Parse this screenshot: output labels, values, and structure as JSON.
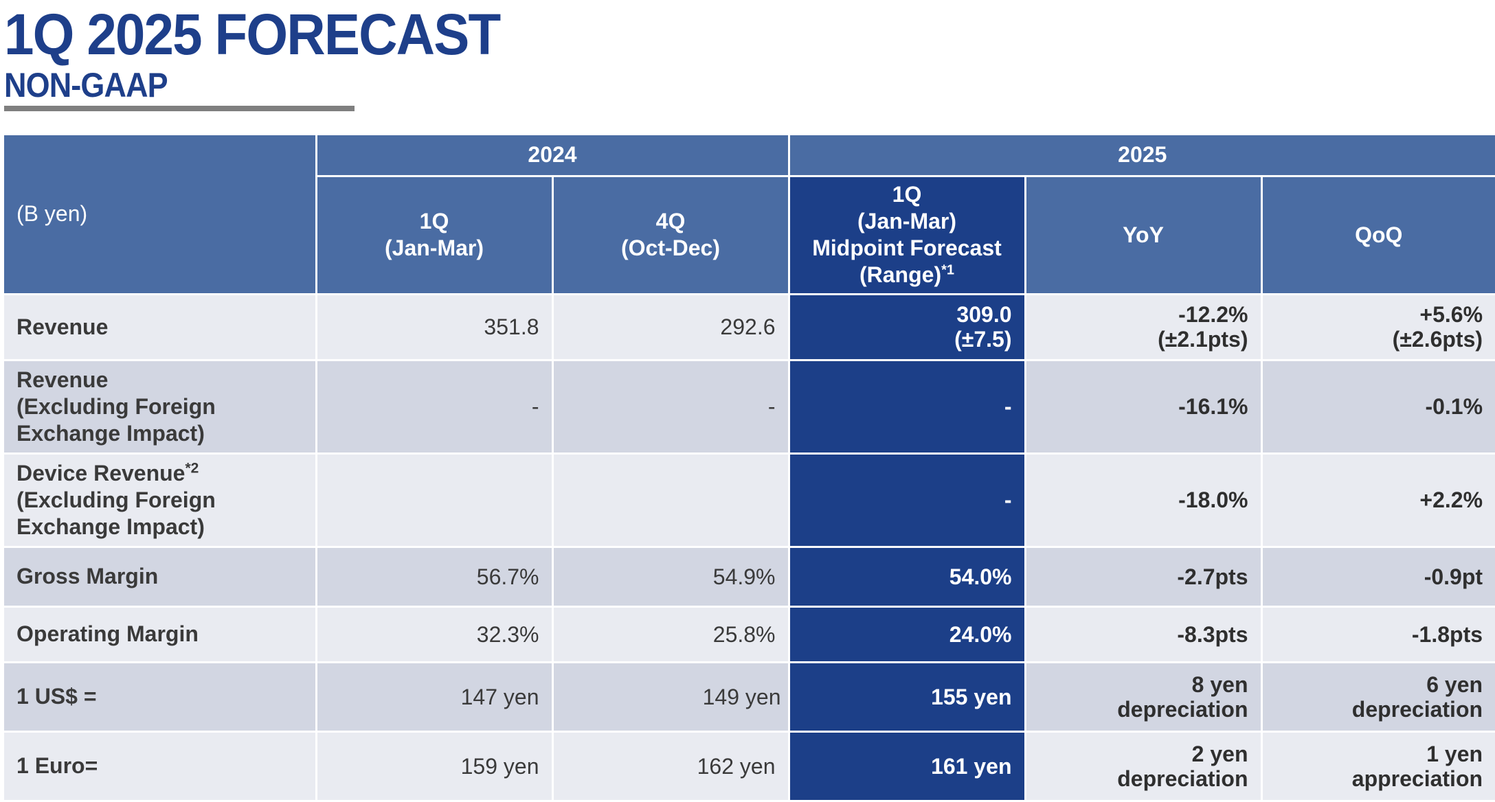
{
  "header": {
    "title": "1Q 2025 FORECAST",
    "subtitle": "NON-GAAP"
  },
  "table": {
    "unit_label": "(B yen)",
    "year_groups": [
      "2024",
      "2025"
    ],
    "columns": [
      {
        "line1": "1Q",
        "line2": "(Jan-Mar)"
      },
      {
        "line1": "4Q",
        "line2": "(Oct-Dec)"
      },
      {
        "line1": "1Q",
        "line2": "(Jan-Mar)",
        "line3": "Midpoint Forecast",
        "line4": "(Range)",
        "note": "*1"
      },
      {
        "line1": "YoY"
      },
      {
        "line1": "QoQ"
      }
    ],
    "rows": [
      {
        "label": [
          "Revenue"
        ],
        "q1_2024": "351.8",
        "q4_2024": "292.6",
        "forecast": [
          "309.0",
          "(±7.5)"
        ],
        "yoy": [
          "-12.2%",
          "(±2.1pts)"
        ],
        "qoq": [
          "+5.6%",
          "(±2.6pts)"
        ]
      },
      {
        "label": [
          "Revenue",
          "(Excluding Foreign",
          "Exchange Impact)"
        ],
        "q1_2024": "-",
        "q4_2024": "-",
        "forecast": [
          "-"
        ],
        "yoy": [
          "-16.1%"
        ],
        "qoq": [
          "-0.1%"
        ]
      },
      {
        "label": [
          "Device Revenue",
          "(Excluding Foreign",
          "Exchange Impact)"
        ],
        "label_note": "*2",
        "q1_2024": "",
        "q4_2024": "",
        "forecast": [
          "-"
        ],
        "yoy": [
          "-18.0%"
        ],
        "qoq": [
          "+2.2%"
        ]
      },
      {
        "label": [
          "Gross Margin"
        ],
        "q1_2024": "56.7%",
        "q4_2024": "54.9%",
        "forecast": [
          "54.0%"
        ],
        "yoy": [
          "-2.7pts"
        ],
        "qoq": [
          "-0.9pt"
        ]
      },
      {
        "label": [
          "Operating Margin"
        ],
        "q1_2024": "32.3%",
        "q4_2024": "25.8%",
        "forecast": [
          "24.0%"
        ],
        "yoy": [
          "-8.3pts"
        ],
        "qoq": [
          "-1.8pts"
        ]
      },
      {
        "label": [
          "1 US$ ="
        ],
        "q1_2024": "147 yen",
        "q4_2024": "149 yen",
        "forecast": [
          "155 yen"
        ],
        "yoy": [
          "8 yen",
          "depreciation"
        ],
        "qoq": [
          "6 yen",
          "depreciation"
        ]
      },
      {
        "label": [
          "1 Euro="
        ],
        "q1_2024": "159 yen",
        "q4_2024": "162 yen",
        "forecast": [
          "161 yen"
        ],
        "yoy": [
          "2 yen",
          "depreciation"
        ],
        "qoq": [
          "1 yen",
          "appreciation"
        ]
      }
    ]
  },
  "colors": {
    "title": "#1e3f8a",
    "header_bg": "#4a6ca3",
    "forecast_bg": "#1c3f88",
    "row_light": "#e9ebf1",
    "row_dark": "#d2d6e2",
    "rule": "#7f7f7f"
  }
}
